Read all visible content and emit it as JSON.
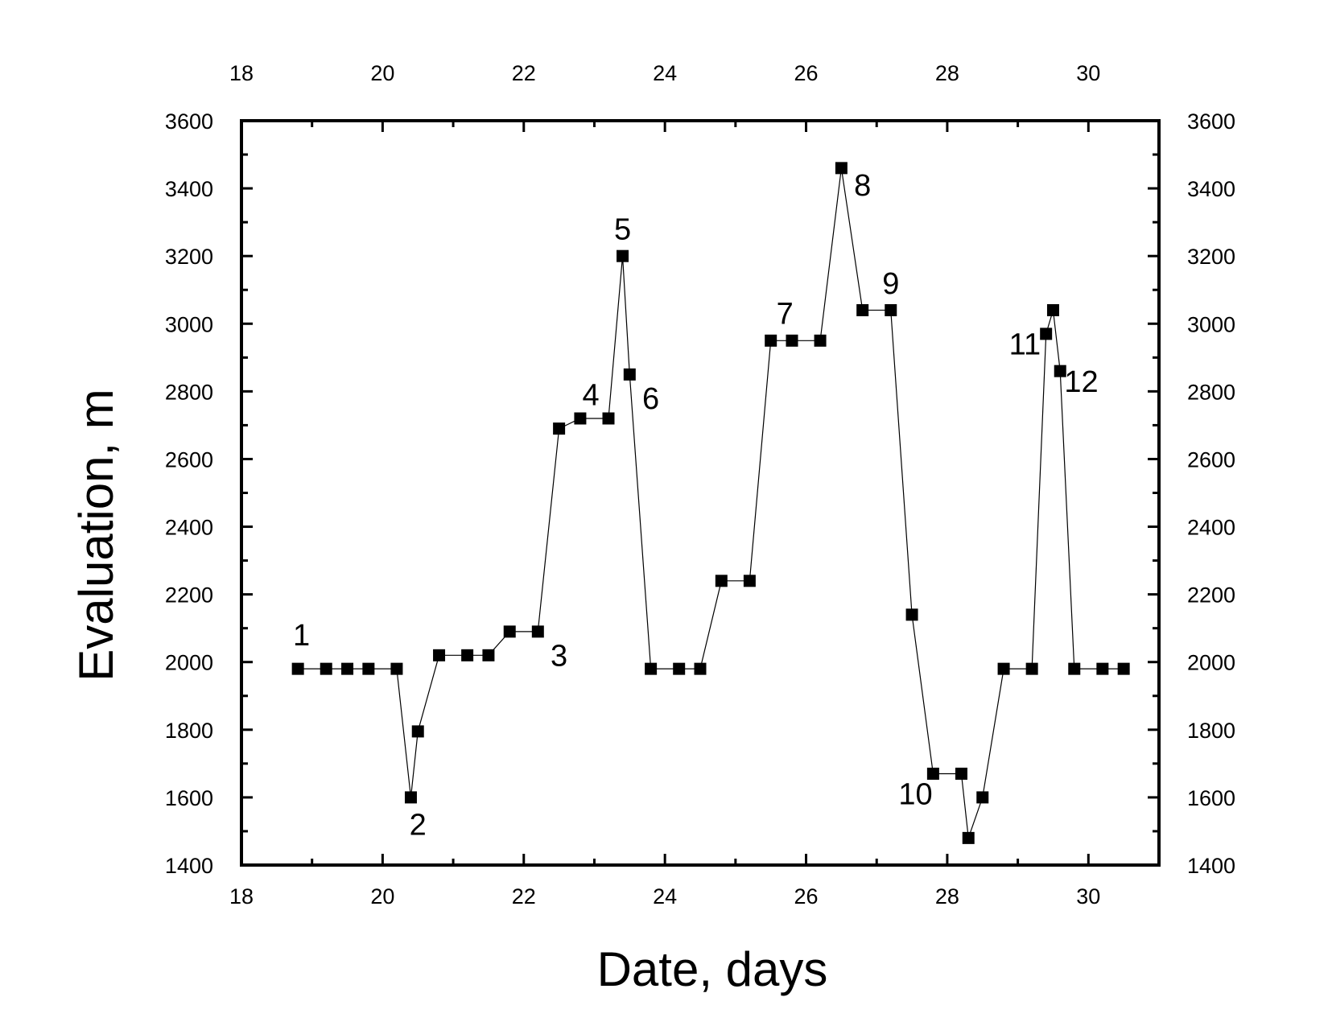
{
  "chart_data": {
    "type": "line",
    "xlabel": "Date, days",
    "ylabel": "Evaluation, m",
    "xlim": [
      18,
      31
    ],
    "ylim": [
      1400,
      3600
    ],
    "x_ticks": [
      18,
      20,
      22,
      24,
      26,
      28,
      30
    ],
    "y_ticks": [
      1400,
      1600,
      1800,
      2000,
      2200,
      2400,
      2600,
      2800,
      3000,
      3200,
      3400,
      3600
    ],
    "mirror_axes": true,
    "grid": false,
    "marker": "square",
    "series": [
      {
        "x": [
          18.8,
          19.2,
          19.5,
          19.8,
          20.2,
          20.4,
          20.5,
          20.8,
          21.2,
          21.5,
          21.8,
          22.2,
          22.5,
          22.8,
          23.2,
          23.4,
          23.5,
          23.8,
          24.2,
          24.5,
          24.8,
          25.2,
          25.5,
          25.8,
          26.2,
          26.5,
          26.8,
          27.2,
          27.5,
          27.8,
          28.2,
          28.3,
          28.5,
          28.8,
          29.2,
          29.4,
          29.5,
          29.6,
          29.8,
          30.2,
          30.5
        ],
        "y": [
          1980,
          1980,
          1980,
          1980,
          1980,
          1600,
          1795,
          2020,
          2020,
          2020,
          2090,
          2090,
          2690,
          2720,
          2720,
          3200,
          2850,
          1980,
          1980,
          1980,
          2240,
          2240,
          2950,
          2950,
          2950,
          3460,
          3040,
          3040,
          2140,
          1670,
          1670,
          1480,
          1600,
          1980,
          1980,
          2970,
          3040,
          2860,
          1980,
          1980,
          1980
        ]
      }
    ],
    "annotations": [
      {
        "text": "1",
        "x": 18.85,
        "y": 2080
      },
      {
        "text": "2",
        "x": 20.5,
        "y": 1520
      },
      {
        "text": "3",
        "x": 22.5,
        "y": 2020
      },
      {
        "text": "4",
        "x": 22.95,
        "y": 2790
      },
      {
        "text": "5",
        "x": 23.4,
        "y": 3280
      },
      {
        "text": "6",
        "x": 23.8,
        "y": 2780
      },
      {
        "text": "7",
        "x": 25.7,
        "y": 3030
      },
      {
        "text": "8",
        "x": 26.8,
        "y": 3410
      },
      {
        "text": "9",
        "x": 27.2,
        "y": 3120
      },
      {
        "text": "10",
        "x": 27.55,
        "y": 1610
      },
      {
        "text": "11",
        "x": 29.1,
        "y": 2940
      },
      {
        "text": "12",
        "x": 29.9,
        "y": 2830
      }
    ]
  }
}
